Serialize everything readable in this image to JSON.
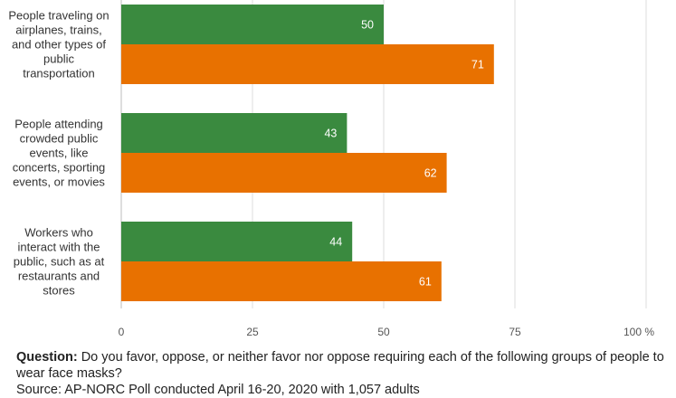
{
  "chart_data": {
    "type": "bar",
    "orientation": "horizontal",
    "categories": [
      [
        "People traveling on",
        "airplanes, trains,",
        "and other types of",
        "public",
        "transportation"
      ],
      [
        "People attending",
        "crowded public",
        "events, like",
        "concerts, sporting",
        "events, or movies"
      ],
      [
        "Workers who",
        "interact with the",
        "public, such as at",
        "restaurants and",
        "stores"
      ]
    ],
    "series": [
      {
        "values": [
          50,
          43,
          44
        ],
        "color": "#3a8a3f"
      },
      {
        "values": [
          71,
          62,
          61
        ],
        "color": "#e87100"
      }
    ],
    "xlim": [
      0,
      100
    ],
    "x_ticks": [
      "0",
      "25",
      "50",
      "75",
      "100 %"
    ],
    "tick_values": [
      0,
      25,
      50,
      75,
      100
    ],
    "grid": true,
    "data_labels": true
  },
  "footer": {
    "question_label": "Question:",
    "question_text": "Do you favor, oppose, or neither favor nor oppose requiring each of the following groups of people to wear face masks?",
    "source_text": "Source: AP-NORC Poll conducted April 16-20, 2020 with 1,057 adults"
  }
}
